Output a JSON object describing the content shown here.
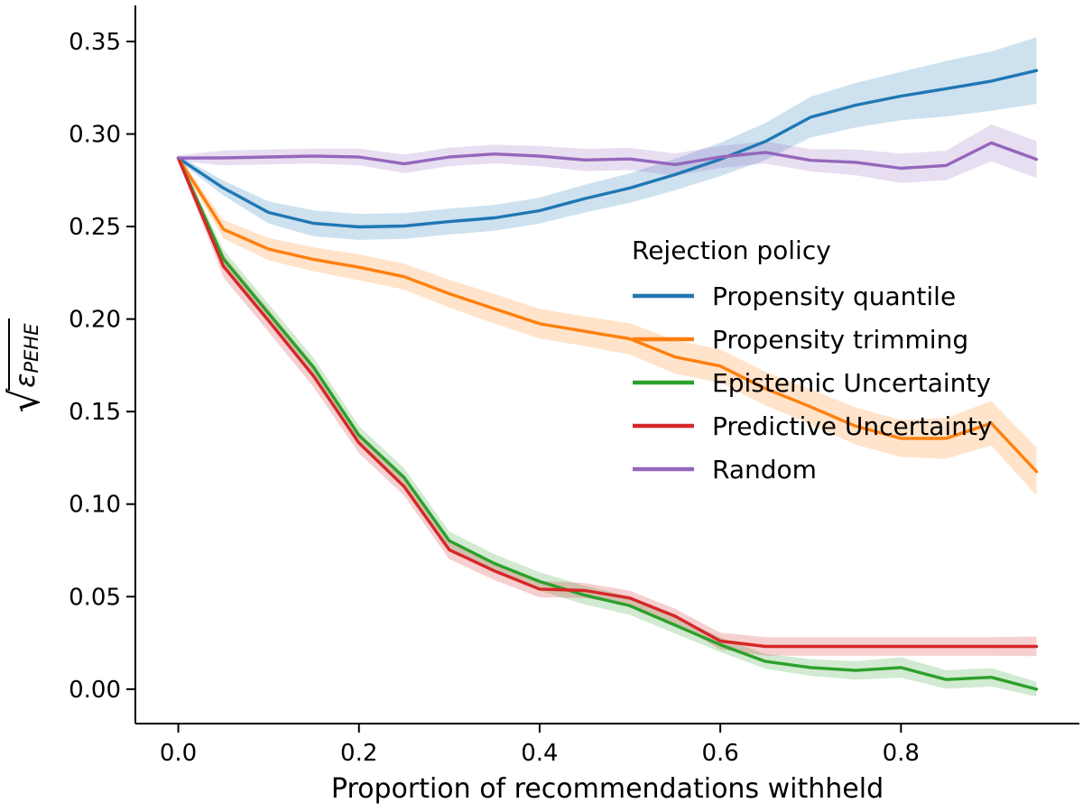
{
  "figure": {
    "background": "#ffffff",
    "xlabel": "Proportion of recommendations withheld",
    "ylabel": {
      "radical": "√",
      "symbol": "ε",
      "subscript": "PEHE"
    },
    "axes": {
      "x": {
        "ticks": [
          0.0,
          0.2,
          0.4,
          0.6,
          0.8
        ],
        "tick_labels": [
          "0.0",
          "0.2",
          "0.4",
          "0.6",
          "0.8"
        ]
      },
      "y": {
        "ticks": [
          0.0,
          0.05,
          0.1,
          0.15,
          0.2,
          0.25,
          0.3,
          0.35
        ],
        "tick_labels": [
          "0.00",
          "0.05",
          "0.10",
          "0.15",
          "0.20",
          "0.25",
          "0.30",
          "0.35"
        ]
      }
    },
    "legend": {
      "title": "Rejection policy"
    }
  },
  "chart_data": {
    "type": "line",
    "title": "",
    "xlabel": "Proportion of recommendations withheld",
    "ylabel": "sqrt(epsilon_PEHE)",
    "xlim": [
      -0.0475,
      0.9975
    ],
    "ylim": [
      -0.0186,
      0.3695
    ],
    "grid": false,
    "legend_position": "center-right",
    "band_meaning": "shaded confidence interval around each line",
    "x": [
      0.0,
      0.05,
      0.1,
      0.15,
      0.2,
      0.25,
      0.3,
      0.35,
      0.4,
      0.45,
      0.5,
      0.55,
      0.6,
      0.65,
      0.7,
      0.75,
      0.8,
      0.85,
      0.9,
      0.95
    ],
    "series": [
      {
        "name": "Propensity quantile",
        "key": "propensity-quantile",
        "color": "#1f77b4",
        "values": [
          0.287,
          0.2708,
          0.2576,
          0.2517,
          0.2498,
          0.2503,
          0.2527,
          0.2547,
          0.2586,
          0.2651,
          0.2708,
          0.2781,
          0.2863,
          0.296,
          0.3091,
          0.3156,
          0.3205,
          0.3245,
          0.3286,
          0.3343
        ],
        "band": [
          0.0015,
          0.004,
          0.006,
          0.007,
          0.007,
          0.007,
          0.007,
          0.007,
          0.007,
          0.0075,
          0.008,
          0.0085,
          0.009,
          0.01,
          0.011,
          0.012,
          0.013,
          0.015,
          0.016,
          0.018
        ]
      },
      {
        "name": "Propensity trimming",
        "key": "propensity-trimming",
        "color": "#ff7f0e",
        "values": [
          0.287,
          0.2485,
          0.2378,
          0.2322,
          0.228,
          0.2229,
          0.2137,
          0.2056,
          0.1975,
          0.1934,
          0.1893,
          0.1795,
          0.1746,
          0.1624,
          0.1526,
          0.1421,
          0.1355,
          0.1355,
          0.1437,
          0.1176
        ],
        "band": [
          0.0015,
          0.005,
          0.006,
          0.0065,
          0.007,
          0.007,
          0.0075,
          0.008,
          0.008,
          0.008,
          0.0085,
          0.009,
          0.009,
          0.009,
          0.0095,
          0.01,
          0.01,
          0.011,
          0.012,
          0.013
        ]
      },
      {
        "name": "Epistemic Uncertainty",
        "key": "epistemic-uncertainty",
        "color": "#2ca02c",
        "values": [
          0.287,
          0.2325,
          0.2031,
          0.1738,
          0.1372,
          0.1144,
          0.0802,
          0.0679,
          0.0582,
          0.0508,
          0.0451,
          0.0346,
          0.024,
          0.015,
          0.0117,
          0.0101,
          0.0117,
          0.0052,
          0.0064,
          0.0
        ],
        "band": [
          0.0015,
          0.005,
          0.005,
          0.005,
          0.005,
          0.005,
          0.005,
          0.005,
          0.005,
          0.005,
          0.005,
          0.0045,
          0.004,
          0.004,
          0.0045,
          0.005,
          0.0055,
          0.005,
          0.005,
          0.004
        ]
      },
      {
        "name": "Predictive Uncertainty",
        "key": "predictive-uncertainty",
        "color": "#d62728",
        "values": [
          0.287,
          0.2285,
          0.1991,
          0.169,
          0.1331,
          0.1095,
          0.0753,
          0.0639,
          0.0541,
          0.0533,
          0.0492,
          0.0394,
          0.026,
          0.0231,
          0.0231,
          0.0231,
          0.0231,
          0.0231,
          0.0231,
          0.0231
        ],
        "band": [
          0.0015,
          0.006,
          0.006,
          0.006,
          0.0055,
          0.005,
          0.005,
          0.005,
          0.0045,
          0.004,
          0.004,
          0.004,
          0.0045,
          0.005,
          0.005,
          0.005,
          0.005,
          0.005,
          0.005,
          0.0053
        ]
      },
      {
        "name": "Random",
        "key": "random",
        "color": "#9467bd",
        "values": [
          0.287,
          0.2871,
          0.2876,
          0.2881,
          0.2876,
          0.2839,
          0.2876,
          0.2892,
          0.2881,
          0.286,
          0.2865,
          0.2835,
          0.2876,
          0.2901,
          0.2858,
          0.2847,
          0.2815,
          0.283,
          0.2952,
          0.2863
        ],
        "band": [
          0.0015,
          0.004,
          0.004,
          0.004,
          0.0045,
          0.005,
          0.005,
          0.005,
          0.0055,
          0.006,
          0.006,
          0.006,
          0.006,
          0.006,
          0.006,
          0.007,
          0.008,
          0.008,
          0.01,
          0.01
        ]
      }
    ]
  }
}
